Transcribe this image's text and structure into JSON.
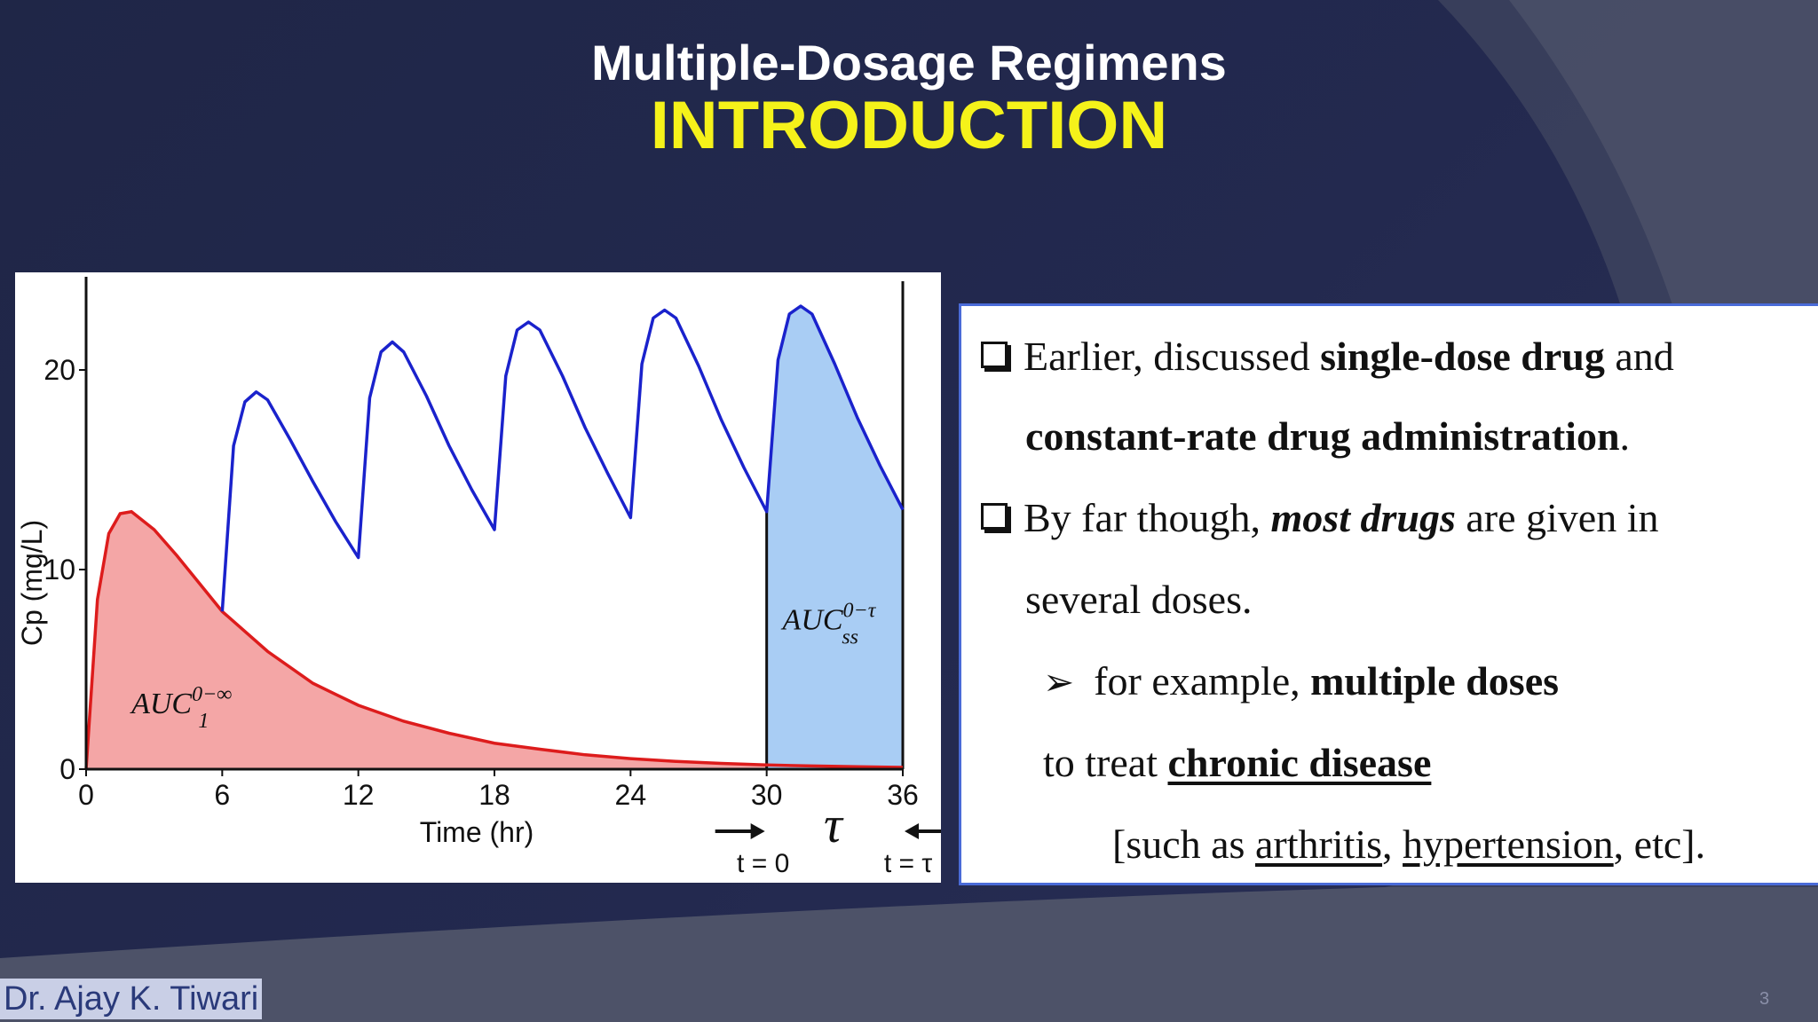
{
  "slide": {
    "title": "Multiple-Dosage Regimens",
    "subtitle": "INTRODUCTION",
    "author": "Dr. Ajay K. Tiwari",
    "page_number": "3",
    "colors": {
      "background": "#22284d",
      "title": "#ffffff",
      "subtitle": "#f5f21a",
      "panel_border": "#4a6bd8"
    }
  },
  "bullets": {
    "b1_part1": "Earlier, discussed ",
    "b1_bold1": "single-dose drug",
    "b1_part2": " and",
    "b1_bold2": "constant-rate drug administration",
    "b1_end": ".",
    "b2_part1": "By far though, ",
    "b2_bolditalic": "most drugs",
    "b2_part2": " are given in",
    "b2_line2": "several doses.",
    "sub_part1": "for example, ",
    "sub_bold": "multiple doses",
    "sub_line2_part1": "to treat ",
    "sub_line2_bold": "chronic disease",
    "ex_open": "[such as ",
    "ex_link1": "arthritis",
    "ex_comma": ", ",
    "ex_link2": "hypertension",
    "ex_close": ", etc]."
  },
  "chart_data": {
    "type": "area",
    "xlabel": "Time (hr)",
    "ylabel": "Cp (mg/L)",
    "xticks": [
      0,
      6,
      12,
      18,
      24,
      30,
      36
    ],
    "yticks": [
      0,
      10,
      20
    ],
    "xlim": [
      0,
      36
    ],
    "ylim": [
      0,
      24
    ],
    "dose_interval_hr": 6,
    "series": [
      {
        "name": "single dose",
        "color": "#dd1c1c",
        "fill": "#f4a6a6",
        "x": [
          0,
          0.5,
          1,
          1.5,
          2,
          3,
          4,
          5,
          6,
          8,
          10,
          12,
          14,
          16,
          18,
          20,
          22,
          24,
          26,
          28,
          30,
          32,
          34,
          36
        ],
        "y": [
          0,
          8.5,
          11.8,
          12.8,
          12.9,
          12.0,
          10.7,
          9.3,
          7.9,
          5.9,
          4.3,
          3.2,
          2.4,
          1.8,
          1.3,
          1.0,
          0.72,
          0.53,
          0.39,
          0.29,
          0.21,
          0.16,
          0.12,
          0.09
        ]
      },
      {
        "name": "multiple doses",
        "color": "#1a22cc",
        "fill": "#a9cdf4",
        "fill_from_x": 30,
        "x": [
          6,
          6.5,
          7,
          7.5,
          8,
          9,
          10,
          11,
          12,
          12.5,
          13,
          13.5,
          14,
          15,
          16,
          17,
          18,
          18.5,
          19,
          19.5,
          20,
          21,
          22,
          23,
          24,
          24.5,
          25,
          25.5,
          26,
          27,
          28,
          29,
          30,
          30.5,
          31,
          31.5,
          32,
          33,
          34,
          35,
          36
        ],
        "y": [
          7.9,
          16.2,
          18.4,
          18.9,
          18.5,
          16.5,
          14.4,
          12.4,
          10.6,
          18.6,
          20.9,
          21.4,
          20.9,
          18.7,
          16.2,
          14.0,
          12.0,
          19.7,
          22.0,
          22.4,
          22.0,
          19.7,
          17.1,
          14.8,
          12.6,
          20.3,
          22.6,
          23.0,
          22.6,
          20.2,
          17.5,
          15.1,
          12.9,
          20.5,
          22.8,
          23.2,
          22.8,
          20.3,
          17.6,
          15.2,
          13.0
        ]
      }
    ],
    "annotations": [
      {
        "text": "AUC",
        "sub": "1",
        "sup": "0−∞",
        "x": 2.0,
        "y": 2.8
      },
      {
        "text": "AUC",
        "sub": "ss",
        "sup": "0−τ",
        "x": 30.7,
        "y": 7.0
      }
    ],
    "markers": {
      "tau_label": "τ",
      "t0_label": "t = 0",
      "ttau_label": "t = τ"
    }
  }
}
